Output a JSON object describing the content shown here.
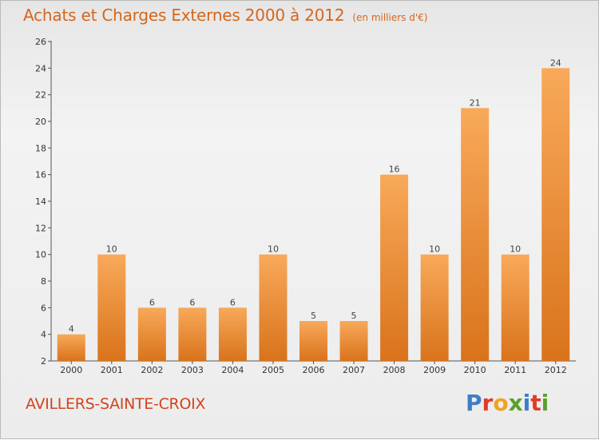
{
  "header": {
    "title": "Achats et Charges Externes 2000 à 2012",
    "unit": "(en milliers d'€)"
  },
  "footer": {
    "commune": "AVILLERS-SAINTE-CROIX",
    "logo_letters": [
      "P",
      "r",
      "o",
      "x",
      "i",
      "t",
      "i"
    ],
    "logo_colors": [
      "#3d7ec8",
      "#e23a2b",
      "#f0a323",
      "#5aa02c",
      "#3d7ec8",
      "#e23a2b",
      "#5aa02c"
    ]
  },
  "colors": {
    "bar_top": "#f8a95a",
    "bar_bottom": "#d9731b",
    "axis": "#555555"
  },
  "chart_data": {
    "type": "bar",
    "categories": [
      "2000",
      "2001",
      "2002",
      "2003",
      "2004",
      "2005",
      "2006",
      "2007",
      "2008",
      "2009",
      "2010",
      "2011",
      "2012"
    ],
    "values": [
      4,
      10,
      6,
      6,
      6,
      10,
      5,
      5,
      16,
      10,
      21,
      10,
      24
    ],
    "ylim": [
      2,
      26
    ],
    "yticks": [
      2,
      4,
      6,
      8,
      10,
      12,
      14,
      16,
      18,
      20,
      22,
      24,
      26
    ],
    "grid": false
  }
}
